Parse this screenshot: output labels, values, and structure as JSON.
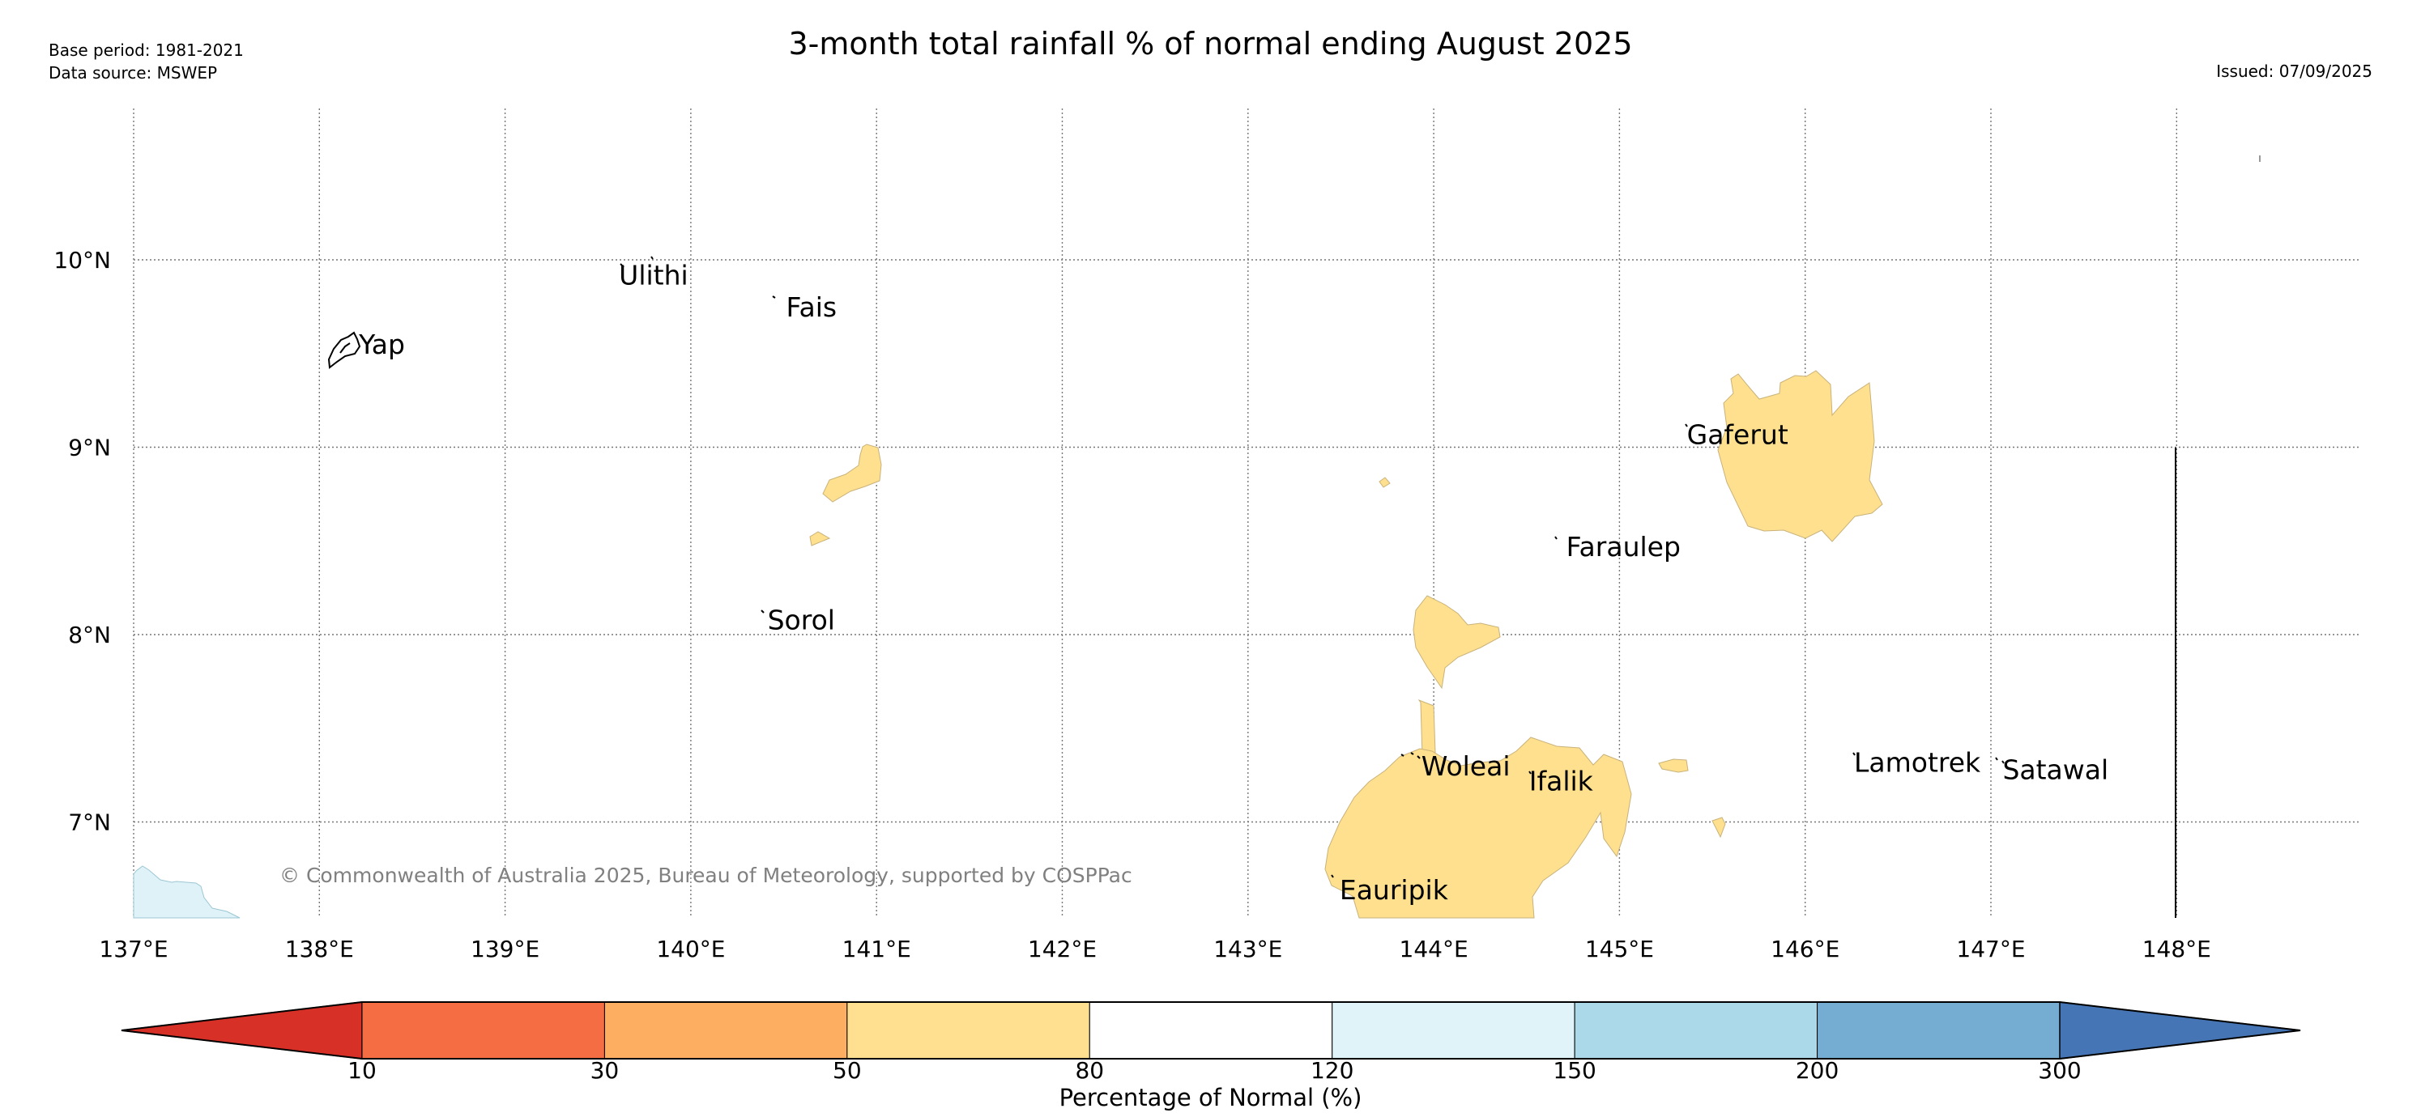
{
  "header": {
    "title": "3-month total rainfall % of normal ending August 2025",
    "base_period": "Base period: 1981-2021",
    "data_source": "Data source: MSWEP",
    "issued": "Issued: 07/09/2025"
  },
  "map": {
    "lon_range": [
      137,
      148.8
    ],
    "lat_range": [
      6.5,
      10.8
    ],
    "lon_ticks": [
      {
        "value": 137,
        "label": "137°E"
      },
      {
        "value": 138,
        "label": "138°E"
      },
      {
        "value": 139,
        "label": "139°E"
      },
      {
        "value": 140,
        "label": "140°E"
      },
      {
        "value": 141,
        "label": "141°E"
      },
      {
        "value": 142,
        "label": "142°E"
      },
      {
        "value": 143,
        "label": "143°E"
      },
      {
        "value": 144,
        "label": "144°E"
      },
      {
        "value": 145,
        "label": "145°E"
      },
      {
        "value": 146,
        "label": "146°E"
      },
      {
        "value": 147,
        "label": "147°E"
      },
      {
        "value": 148,
        "label": "148°E"
      }
    ],
    "lat_ticks": [
      {
        "value": 7,
        "label": "7°N"
      },
      {
        "value": 8,
        "label": "8°N"
      },
      {
        "value": 9,
        "label": "9°N"
      },
      {
        "value": 10,
        "label": "10°N"
      }
    ],
    "places": [
      {
        "name": "Yap",
        "lon": 138.2,
        "lat": 9.55
      },
      {
        "name": "Ulithi",
        "lon": 139.6,
        "lat": 9.92
      },
      {
        "name": "Fais",
        "lon": 140.5,
        "lat": 9.75
      },
      {
        "name": "Sorol",
        "lon": 140.4,
        "lat": 8.08
      },
      {
        "name": "Gaferut",
        "lon": 145.35,
        "lat": 9.07
      },
      {
        "name": "Faraulep",
        "lon": 144.7,
        "lat": 8.47
      },
      {
        "name": "Woleai",
        "lon": 143.92,
        "lat": 7.3
      },
      {
        "name": "Ifalik",
        "lon": 144.5,
        "lat": 7.22
      },
      {
        "name": "Lamotrek",
        "lon": 146.25,
        "lat": 7.32
      },
      {
        "name": "Satawal",
        "lon": 147.05,
        "lat": 7.28
      },
      {
        "name": "Eauripik",
        "lon": 143.48,
        "lat": 6.64
      }
    ],
    "copyright": "© Commonwealth of Australia 2025, Bureau of Meteorology, supported by COSPPac",
    "colors": {
      "cat_50_80": "#ffe08f",
      "cat_120_150": "#dff2f8",
      "grid": "#777777",
      "island_outline": "#000000",
      "copyright_text": "#808080"
    }
  },
  "colorbar": {
    "title": "Percentage of Normal (%)",
    "labels": [
      "10",
      "30",
      "50",
      "80",
      "120",
      "150",
      "200",
      "300"
    ],
    "colors": [
      "#d73027",
      "#f46d43",
      "#fdae61",
      "#fee090",
      "#ffffff",
      "#e0f3f8",
      "#abd9e9",
      "#74add1",
      "#4575b4"
    ]
  }
}
